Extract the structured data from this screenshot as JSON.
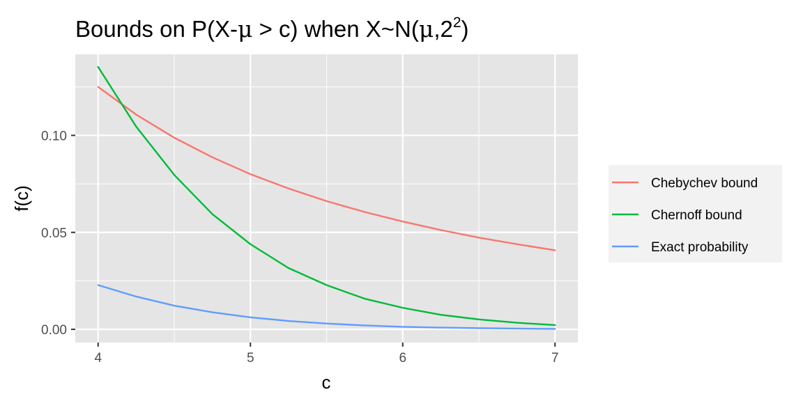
{
  "chart_data": {
    "type": "line",
    "title": "Bounds on P(X-μ > c) when X~N(μ,2²)",
    "title_parts": {
      "main": "Bounds on P(X-",
      "mu": "μ",
      "mid": " > c) when X~N(",
      "mu2": "μ",
      "comma": ",2",
      "sup": "2",
      "close": ")"
    },
    "xlabel": "c",
    "ylabel": "f(c)",
    "xlim": [
      3.85,
      7.15
    ],
    "ylim": [
      -0.0068,
      0.1418
    ],
    "x_ticks": [
      4,
      5,
      6,
      7
    ],
    "x_tick_labels": [
      "4",
      "5",
      "6",
      "7"
    ],
    "y_ticks": [
      0.0,
      0.05,
      0.1
    ],
    "y_tick_labels": [
      "0.00",
      "0.05",
      "0.10"
    ],
    "grid": true,
    "legend_position": "right",
    "x": [
      4.0,
      4.25,
      4.5,
      4.75,
      5.0,
      5.25,
      5.5,
      5.75,
      6.0,
      6.25,
      6.5,
      6.75,
      7.0
    ],
    "series": [
      {
        "name": "Chebychev bound",
        "color": "#F8766D",
        "values": [
          0.125,
          0.1107,
          0.0988,
          0.0887,
          0.08,
          0.0726,
          0.0661,
          0.0605,
          0.0556,
          0.0512,
          0.0473,
          0.0439,
          0.0408
        ]
      },
      {
        "name": "Chernoff bound",
        "color": "#00BA38",
        "values": [
          0.1353,
          0.1045,
          0.0796,
          0.0594,
          0.0439,
          0.0316,
          0.0228,
          0.0158,
          0.0111,
          0.0075,
          0.0051,
          0.0034,
          0.0022
        ]
      },
      {
        "name": "Exact probability",
        "color": "#619CFF",
        "values": [
          0.0228,
          0.0169,
          0.0122,
          0.0088,
          0.0062,
          0.0043,
          0.003,
          0.002,
          0.0013,
          0.0009,
          0.0006,
          0.0004,
          0.0002
        ]
      }
    ]
  },
  "colors": {
    "panel_background": "#E5E5E5",
    "grid_major": "#FFFFFF",
    "legend_background": "#F2F2F2"
  }
}
